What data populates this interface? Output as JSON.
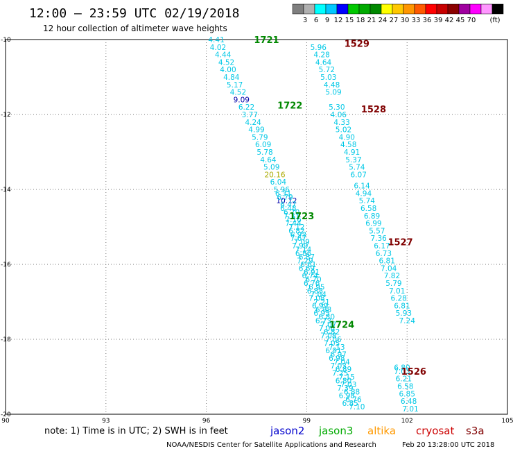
{
  "title": "12:00 – 23:59 UTC 02/19/2018",
  "subtitle": "12 hour collection of altimeter wave heights",
  "colorbar": {
    "colors": [
      "#7f7f7f",
      "#b0b0b0",
      "#00ffff",
      "#00c8ff",
      "#0000ff",
      "#00c800",
      "#00aa00",
      "#008800",
      "#ffff00",
      "#ffc800",
      "#ff9600",
      "#ff5a00",
      "#ff0000",
      "#c80000",
      "#8b0000",
      "#a000a0",
      "#ff00ff",
      "#ff96ff",
      "#000000"
    ],
    "labels": [
      "3",
      "6",
      "9",
      "12",
      "15",
      "18",
      "21",
      "24",
      "27",
      "30",
      "33",
      "36",
      "39",
      "42",
      "45",
      "70",
      "(ft)"
    ]
  },
  "axes": {
    "lon_ticks": [
      "90",
      "93",
      "96",
      "99",
      "102",
      "105"
    ],
    "lat_ticks": [
      "-10",
      "-12",
      "-14",
      "-16",
      "-18",
      "-20"
    ],
    "lon_range": [
      90,
      105
    ],
    "lat_range": [
      -20,
      -10
    ]
  },
  "chart_data": {
    "type": "scatter",
    "tracks": [
      {
        "name": "1721",
        "satellite": "jason3",
        "color": "#008800",
        "label_pos": [
          97.8,
          -10.0
        ],
        "points": [
          {
            "lon": 96.3,
            "lat": -10.0,
            "v": "4.41"
          },
          {
            "lon": 96.35,
            "lat": -10.2,
            "v": "4.02"
          },
          {
            "lon": 96.5,
            "lat": -10.4,
            "v": "4.44"
          },
          {
            "lon": 96.6,
            "lat": -10.6,
            "v": "4.52"
          },
          {
            "lon": 96.65,
            "lat": -10.8,
            "v": "4.00"
          },
          {
            "lon": 96.75,
            "lat": -11.0,
            "v": "4.84"
          },
          {
            "lon": 96.85,
            "lat": -11.2,
            "v": "5.17"
          },
          {
            "lon": 96.95,
            "lat": -11.4,
            "v": "4.52"
          },
          {
            "lon": 97.05,
            "lat": -11.6,
            "v": "9.09",
            "color": "#0000aa"
          }
        ]
      },
      {
        "name": "1722",
        "satellite": "jason3",
        "color": "#008800",
        "label_pos": [
          98.5,
          -11.75
        ],
        "points": [
          {
            "lon": 97.2,
            "lat": -11.8,
            "v": "6.22"
          },
          {
            "lon": 97.3,
            "lat": -12.0,
            "v": "3.77"
          },
          {
            "lon": 97.4,
            "lat": -12.2,
            "v": "4.24"
          },
          {
            "lon": 97.5,
            "lat": -12.4,
            "v": "4.99"
          },
          {
            "lon": 97.6,
            "lat": -12.6,
            "v": "5.79"
          },
          {
            "lon": 97.7,
            "lat": -12.8,
            "v": "6.09"
          },
          {
            "lon": 97.75,
            "lat": -13.0,
            "v": "5.78"
          },
          {
            "lon": 97.85,
            "lat": -13.2,
            "v": "4.64"
          },
          {
            "lon": 97.95,
            "lat": -13.4,
            "v": "5.09"
          },
          {
            "lon": 98.05,
            "lat": -13.6,
            "v": "20.16",
            "color": "#aaaa00"
          },
          {
            "lon": 98.15,
            "lat": -13.8,
            "v": "6.04"
          },
          {
            "lon": 98.25,
            "lat": -14.0,
            "v": "5.96"
          },
          {
            "lon": 98.3,
            "lat": -14.1,
            "v": "6.31"
          },
          {
            "lon": 98.4,
            "lat": -14.3,
            "v": "10.12",
            "color": "#0000aa"
          },
          {
            "lon": 98.45,
            "lat": -14.5,
            "v": "6.48"
          },
          {
            "lon": 98.55,
            "lat": -14.7,
            "v": "7.31"
          },
          {
            "lon": 98.6,
            "lat": -14.9,
            "v": "7.44"
          },
          {
            "lon": 98.7,
            "lat": -15.1,
            "v": "6.82"
          },
          {
            "lon": 98.75,
            "lat": -15.3,
            "v": "7.67"
          },
          {
            "lon": 98.8,
            "lat": -15.5,
            "v": "7.99"
          },
          {
            "lon": 98.9,
            "lat": -15.7,
            "v": "6.86"
          },
          {
            "lon": 98.95,
            "lat": -15.9,
            "v": "7.29"
          },
          {
            "lon": 99.0,
            "lat": -16.1,
            "v": "6.69"
          },
          {
            "lon": 99.1,
            "lat": -16.3,
            "v": "6.74"
          },
          {
            "lon": 99.15,
            "lat": -16.5,
            "v": "6.76"
          },
          {
            "lon": 99.25,
            "lat": -16.7,
            "v": "6.85"
          },
          {
            "lon": 99.3,
            "lat": -16.9,
            "v": "7.08"
          },
          {
            "lon": 99.4,
            "lat": -17.1,
            "v": "6.99"
          },
          {
            "lon": 99.45,
            "lat": -17.3,
            "v": "6.95"
          },
          {
            "lon": 99.5,
            "lat": -17.5,
            "v": "6.73"
          },
          {
            "lon": 99.6,
            "lat": -17.7,
            "v": "7.06"
          },
          {
            "lon": 99.65,
            "lat": -17.9,
            "v": "7.08"
          },
          {
            "lon": 99.75,
            "lat": -18.1,
            "v": "7.05"
          },
          {
            "lon": 99.8,
            "lat": -18.3,
            "v": "6.91"
          },
          {
            "lon": 99.9,
            "lat": -18.5,
            "v": "6.98"
          },
          {
            "lon": 99.95,
            "lat": -18.7,
            "v": "7.03"
          },
          {
            "lon": 100.0,
            "lat": -18.9,
            "v": "7.25"
          },
          {
            "lon": 100.1,
            "lat": -19.1,
            "v": "6.80"
          },
          {
            "lon": 100.15,
            "lat": -19.3,
            "v": "7.39"
          },
          {
            "lon": 100.2,
            "lat": -19.5,
            "v": "6.98"
          },
          {
            "lon": 100.3,
            "lat": -19.7,
            "v": "6.85"
          }
        ]
      },
      {
        "name": "1723",
        "satellite": "jason3",
        "color": "#008800",
        "label_pos": [
          98.85,
          -14.7
        ],
        "points": [
          {
            "lon": 98.35,
            "lat": -14.2,
            "v": "6.79"
          },
          {
            "lon": 98.45,
            "lat": -14.4,
            "v": "6.47"
          },
          {
            "lon": 98.55,
            "lat": -14.6,
            "v": "6.70"
          },
          {
            "lon": 98.6,
            "lat": -14.8,
            "v": "7.16"
          },
          {
            "lon": 98.7,
            "lat": -15.0,
            "v": "7.12"
          },
          {
            "lon": 98.75,
            "lat": -15.2,
            "v": "6.93"
          },
          {
            "lon": 98.85,
            "lat": -15.4,
            "v": "7.09"
          },
          {
            "lon": 98.9,
            "lat": -15.6,
            "v": "7.14"
          },
          {
            "lon": 99.0,
            "lat": -15.8,
            "v": "6.87"
          },
          {
            "lon": 99.05,
            "lat": -16.0,
            "v": "6.61"
          },
          {
            "lon": 99.15,
            "lat": -16.2,
            "v": "6.91"
          },
          {
            "lon": 99.2,
            "lat": -16.4,
            "v": "6.70"
          },
          {
            "lon": 99.3,
            "lat": -16.6,
            "v": "6.95"
          },
          {
            "lon": 99.35,
            "lat": -16.8,
            "v": "7.04"
          },
          {
            "lon": 99.45,
            "lat": -17.0,
            "v": "7.21"
          },
          {
            "lon": 99.5,
            "lat": -17.2,
            "v": "6.98"
          },
          {
            "lon": 99.6,
            "lat": -17.4,
            "v": "6.80"
          },
          {
            "lon": 99.65,
            "lat": -17.6,
            "v": "7.07"
          },
          {
            "lon": 99.75,
            "lat": -17.8,
            "v": "6.82"
          },
          {
            "lon": 99.8,
            "lat": -18.0,
            "v": "7.06"
          },
          {
            "lon": 99.9,
            "lat": -18.2,
            "v": "7.13"
          },
          {
            "lon": 99.95,
            "lat": -18.4,
            "v": "6.97"
          },
          {
            "lon": 100.05,
            "lat": -18.6,
            "v": "7.04"
          },
          {
            "lon": 100.1,
            "lat": -18.8,
            "v": "6.89"
          },
          {
            "lon": 100.2,
            "lat": -19.0,
            "v": "7.15"
          },
          {
            "lon": 100.25,
            "lat": -19.2,
            "v": "7.03"
          },
          {
            "lon": 100.35,
            "lat": -19.4,
            "v": "6.88"
          },
          {
            "lon": 100.4,
            "lat": -19.6,
            "v": "6.76"
          },
          {
            "lon": 100.5,
            "lat": -19.8,
            "v": "7.10"
          }
        ]
      },
      {
        "name": "1724",
        "satellite": "jason3",
        "color": "#008800",
        "label_pos": [
          100.05,
          -17.6
        ],
        "points": []
      },
      {
        "name": "1529",
        "satellite": "s3a",
        "color": "#800000",
        "label_pos": [
          100.5,
          -10.1
        ],
        "points": [
          {
            "lon": 99.35,
            "lat": -10.2,
            "v": "5.96"
          },
          {
            "lon": 99.45,
            "lat": -10.4,
            "v": "4.28"
          },
          {
            "lon": 99.5,
            "lat": -10.6,
            "v": "4.64"
          },
          {
            "lon": 99.6,
            "lat": -10.8,
            "v": "5.72"
          },
          {
            "lon": 99.65,
            "lat": -11.0,
            "v": "5.03"
          },
          {
            "lon": 99.75,
            "lat": -11.2,
            "v": "4.48"
          },
          {
            "lon": 99.8,
            "lat": -11.4,
            "v": "5.09"
          }
        ]
      },
      {
        "name": "1528",
        "satellite": "s3a",
        "color": "#800000",
        "label_pos": [
          101.0,
          -11.85
        ],
        "points": [
          {
            "lon": 99.9,
            "lat": -11.8,
            "v": "5.30"
          },
          {
            "lon": 99.95,
            "lat": -12.0,
            "v": "4.06"
          },
          {
            "lon": 100.05,
            "lat": -12.2,
            "v": "4.33"
          },
          {
            "lon": 100.1,
            "lat": -12.4,
            "v": "5.02"
          },
          {
            "lon": 100.2,
            "lat": -12.6,
            "v": "4.90"
          },
          {
            "lon": 100.25,
            "lat": -12.8,
            "v": "4.58"
          },
          {
            "lon": 100.35,
            "lat": -13.0,
            "v": "4.91"
          },
          {
            "lon": 100.4,
            "lat": -13.2,
            "v": "5.37"
          },
          {
            "lon": 100.5,
            "lat": -13.4,
            "v": "5.74"
          },
          {
            "lon": 100.55,
            "lat": -13.6,
            "v": "6.07"
          }
        ]
      },
      {
        "name": "1527",
        "satellite": "s3a",
        "color": "#800000",
        "label_pos": [
          101.8,
          -15.4
        ],
        "points": [
          {
            "lon": 100.65,
            "lat": -13.9,
            "v": "6.14"
          },
          {
            "lon": 100.7,
            "lat": -14.1,
            "v": "4.94"
          },
          {
            "lon": 100.8,
            "lat": -14.3,
            "v": "5.74"
          },
          {
            "lon": 100.85,
            "lat": -14.5,
            "v": "6.58"
          },
          {
            "lon": 100.95,
            "lat": -14.7,
            "v": "6.89"
          },
          {
            "lon": 101.0,
            "lat": -14.9,
            "v": "6.99"
          },
          {
            "lon": 101.1,
            "lat": -15.1,
            "v": "5.57"
          },
          {
            "lon": 101.15,
            "lat": -15.3,
            "v": "7.36"
          },
          {
            "lon": 101.25,
            "lat": -15.5,
            "v": "6.17"
          },
          {
            "lon": 101.3,
            "lat": -15.7,
            "v": "6.73"
          },
          {
            "lon": 101.4,
            "lat": -15.9,
            "v": "6.81"
          },
          {
            "lon": 101.45,
            "lat": -16.1,
            "v": "7.04"
          },
          {
            "lon": 101.55,
            "lat": -16.3,
            "v": "7.82"
          },
          {
            "lon": 101.6,
            "lat": -16.5,
            "v": "5.79"
          },
          {
            "lon": 101.7,
            "lat": -16.7,
            "v": "7.01"
          },
          {
            "lon": 101.75,
            "lat": -16.9,
            "v": "6.28"
          },
          {
            "lon": 101.85,
            "lat": -17.1,
            "v": "6.81"
          },
          {
            "lon": 101.9,
            "lat": -17.3,
            "v": "5.93"
          },
          {
            "lon": 102.0,
            "lat": -17.5,
            "v": "7.24"
          }
        ]
      },
      {
        "name": "1526",
        "satellite": "s3a",
        "color": "#800000",
        "label_pos": [
          102.2,
          -18.85
        ],
        "points": [
          {
            "lon": 101.85,
            "lat": -18.75,
            "v": "6.80"
          },
          {
            "lon": 101.85,
            "lat": -18.85,
            "v": "7.03"
          },
          {
            "lon": 101.9,
            "lat": -19.05,
            "v": "6.21"
          },
          {
            "lon": 101.95,
            "lat": -19.25,
            "v": "6.58"
          },
          {
            "lon": 102.0,
            "lat": -19.45,
            "v": "6.85"
          },
          {
            "lon": 102.05,
            "lat": -19.65,
            "v": "6.48"
          },
          {
            "lon": 102.1,
            "lat": -19.85,
            "v": "7.01"
          }
        ]
      }
    ]
  },
  "footer": {
    "note": "note: 1) Time is in UTC; 2) SWH is in feet",
    "satellites": [
      {
        "name": "jason2",
        "color": "#0000cc"
      },
      {
        "name": "jason3",
        "color": "#00aa00"
      },
      {
        "name": "altika",
        "color": "#ff9900"
      },
      {
        "name": "cryosat",
        "color": "#cc0000"
      },
      {
        "name": "s3a",
        "color": "#800000"
      }
    ],
    "credit": "NOAA/NESDIS Center for Satellite Applications and Research",
    "timestamp": "Feb 20 13:28:00 UTC 2018"
  }
}
